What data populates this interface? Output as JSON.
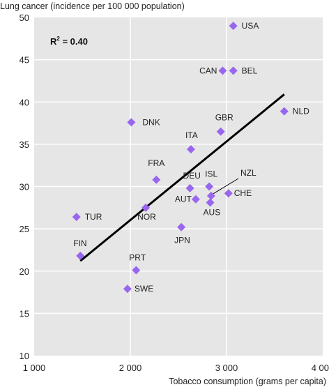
{
  "chart_data": {
    "type": "scatter",
    "title": "",
    "ylabel": "Lung cancer (incidence per 100 000 population)",
    "xlabel": "Tobacco consumption (grams per capita)",
    "xlim": [
      1000,
      4000
    ],
    "ylim": [
      10,
      50
    ],
    "x_ticks": [
      1000,
      2000,
      3000,
      4000
    ],
    "x_tick_labels": [
      "1 000",
      "2 000",
      "3 000",
      "4 000"
    ],
    "y_ticks": [
      10,
      15,
      20,
      25,
      30,
      35,
      40,
      45,
      50
    ],
    "y_tick_labels": [
      "10",
      "15",
      "20",
      "25",
      "30",
      "35",
      "40",
      "45",
      "50"
    ],
    "grid": true,
    "annotation": {
      "r2_label": "R",
      "r2_sup": "2",
      "r2_value": " = 0.40"
    },
    "marker_color": "#9966ee",
    "background_color": "#e6e6e6",
    "points": [
      {
        "country": "USA",
        "x": 3070,
        "y": 49.0
      },
      {
        "country": "CAN",
        "x": 2960,
        "y": 43.7
      },
      {
        "country": "BEL",
        "x": 3070,
        "y": 43.7
      },
      {
        "country": "NLD",
        "x": 3600,
        "y": 38.9
      },
      {
        "country": "DNK",
        "x": 2010,
        "y": 37.6
      },
      {
        "country": "GBR",
        "x": 2940,
        "y": 36.5
      },
      {
        "country": "ITA",
        "x": 2630,
        "y": 34.4
      },
      {
        "country": "FRA",
        "x": 2270,
        "y": 30.8
      },
      {
        "country": "DEU",
        "x": 2620,
        "y": 29.8
      },
      {
        "country": "ISL",
        "x": 2820,
        "y": 30.0
      },
      {
        "country": "NZL",
        "x": 2840,
        "y": 28.9
      },
      {
        "country": "CHE",
        "x": 3020,
        "y": 29.2
      },
      {
        "country": "AUT",
        "x": 2680,
        "y": 28.5
      },
      {
        "country": "AUS",
        "x": 2830,
        "y": 28.1
      },
      {
        "country": "NOR",
        "x": 2160,
        "y": 27.5
      },
      {
        "country": "TUR",
        "x": 1440,
        "y": 26.4
      },
      {
        "country": "JPN",
        "x": 2530,
        "y": 25.2
      },
      {
        "country": "FIN",
        "x": 1480,
        "y": 21.8
      },
      {
        "country": "PRT",
        "x": 2060,
        "y": 20.1
      },
      {
        "country": "SWE",
        "x": 1970,
        "y": 17.9
      }
    ],
    "trendline": {
      "x": [
        1480,
        3600
      ],
      "y": [
        21.2,
        40.9
      ]
    }
  }
}
